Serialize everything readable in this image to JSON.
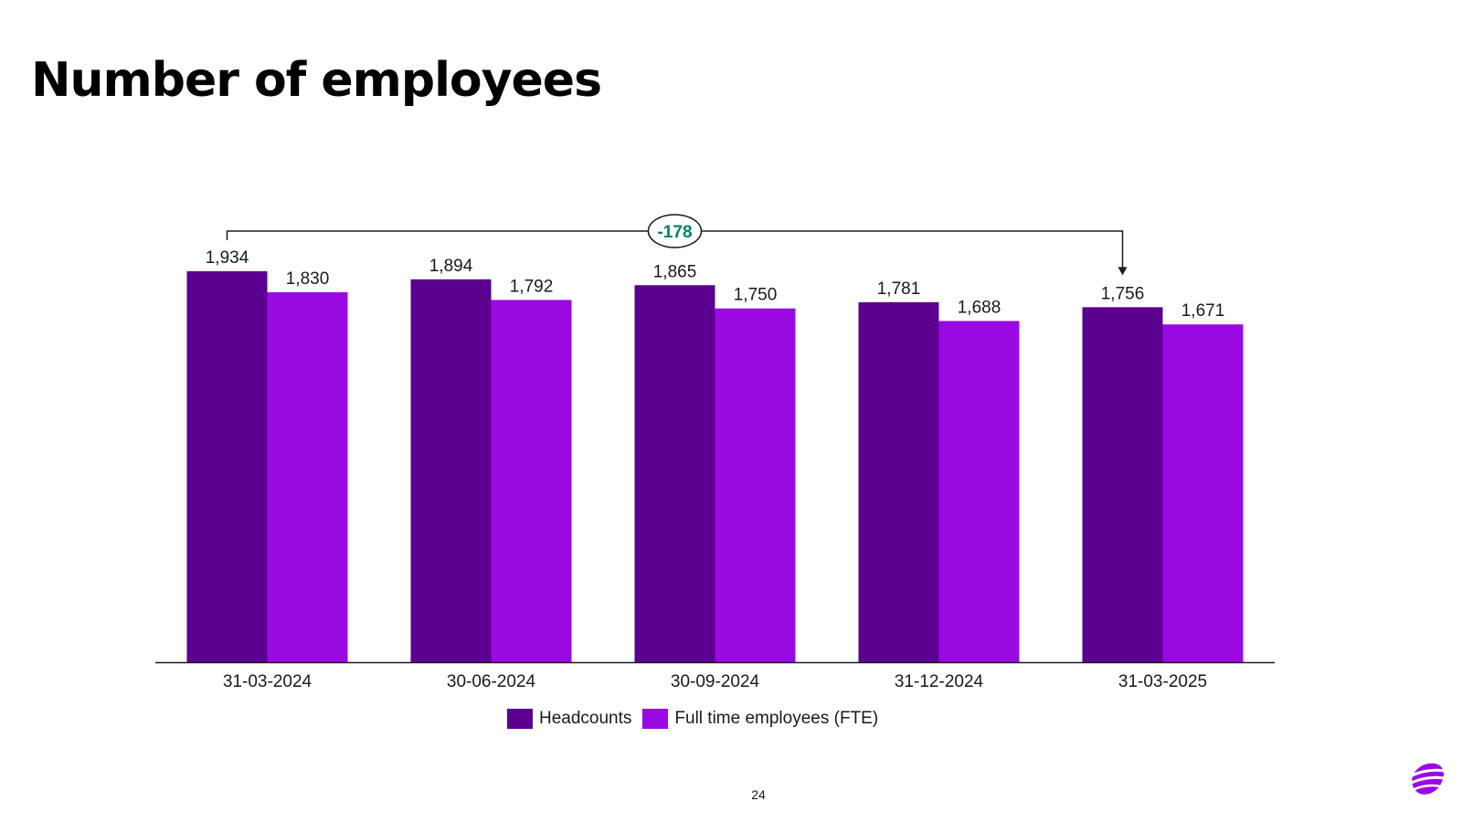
{
  "title": "Number of employees",
  "page_number": "24",
  "colors": {
    "headcounts": "#5b008f",
    "fte": "#990ae3",
    "annotation_text": "#00806b",
    "axis": "#1a1a1a"
  },
  "logo": {
    "icon": "telia-pebble-logo-icon"
  },
  "chart_data": {
    "type": "bar",
    "categories": [
      "31-03-2024",
      "30-06-2024",
      "30-09-2024",
      "31-12-2024",
      "31-03-2025"
    ],
    "series": [
      {
        "name": "Headcounts",
        "values": [
          1934,
          1894,
          1865,
          1781,
          1756
        ]
      },
      {
        "name": "Full time employees (FTE)",
        "values": [
          1830,
          1792,
          1750,
          1688,
          1671
        ]
      }
    ],
    "value_labels": [
      [
        "1,934",
        "1,894",
        "1,865",
        "1,781",
        "1,756"
      ],
      [
        "1,830",
        "1,792",
        "1,750",
        "1,688",
        "1,671"
      ]
    ],
    "ylim": [
      0,
      1934
    ],
    "grid": false,
    "legend_position": "bottom-center",
    "annotation": {
      "label": "-178",
      "from_category": "31-03-2024",
      "to_category": "31-03-2025",
      "series": "Headcounts"
    }
  }
}
